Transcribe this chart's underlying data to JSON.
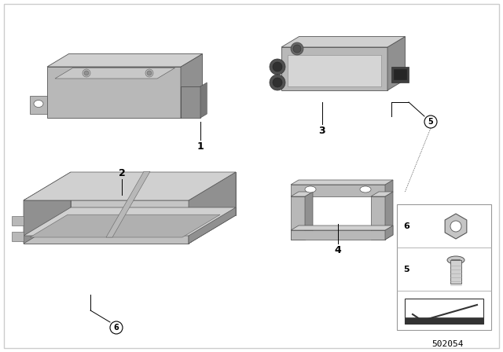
{
  "background_color": "#ffffff",
  "line_color": "#000000",
  "label_color": "#000000",
  "diagram_number": "502054",
  "part_gray_light": "#d0d0d0",
  "part_gray_mid": "#b8b8b8",
  "part_gray_dark": "#909090",
  "part_gray_darker": "#787878",
  "part_gray_shadow": "#a0a0a0"
}
